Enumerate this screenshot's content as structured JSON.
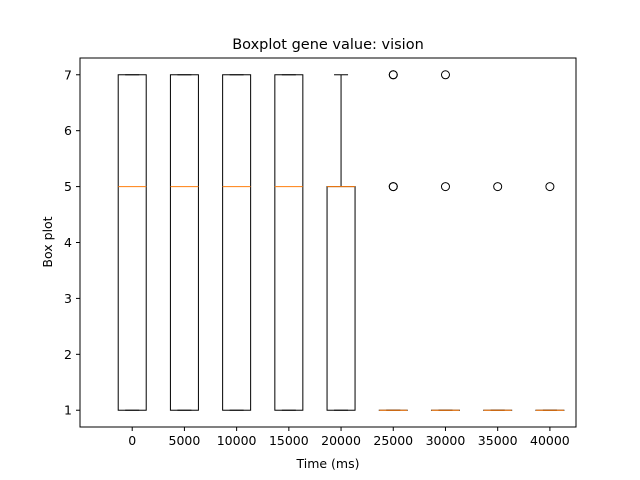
{
  "chart_data": {
    "type": "boxplot",
    "title": "Boxplot gene value: vision",
    "xlabel": "Time (ms)",
    "ylabel": "Box plot",
    "x_ticks": [
      "0",
      "5000",
      "10000",
      "15000",
      "20000",
      "25000",
      "30000",
      "35000",
      "40000"
    ],
    "y_ticks": [
      "1",
      "2",
      "3",
      "4",
      "5",
      "6",
      "7"
    ],
    "xlim": [
      -5000,
      42500
    ],
    "ylim": [
      0.7,
      7.3
    ],
    "grid": false,
    "box_color": "#000000",
    "median_color": "#ff7f0e",
    "boxes": [
      {
        "x": 0,
        "whislo": 1,
        "q1": 1,
        "med": 5,
        "q3": 7,
        "whishi": 7,
        "fliers": []
      },
      {
        "x": 5000,
        "whislo": 1,
        "q1": 1,
        "med": 5,
        "q3": 7,
        "whishi": 7,
        "fliers": []
      },
      {
        "x": 10000,
        "whislo": 1,
        "q1": 1,
        "med": 5,
        "q3": 7,
        "whishi": 7,
        "fliers": []
      },
      {
        "x": 15000,
        "whislo": 1,
        "q1": 1,
        "med": 5,
        "q3": 7,
        "whishi": 7,
        "fliers": []
      },
      {
        "x": 20000,
        "whislo": 1,
        "q1": 1,
        "med": 5,
        "q3": 5,
        "whishi": 7,
        "fliers": []
      },
      {
        "x": 25000,
        "whislo": 1,
        "q1": 1,
        "med": 1,
        "q3": 1,
        "whishi": 1,
        "fliers": [
          5,
          5,
          7,
          7
        ]
      },
      {
        "x": 30000,
        "whislo": 1,
        "q1": 1,
        "med": 1,
        "q3": 1,
        "whishi": 1,
        "fliers": [
          5,
          7
        ]
      },
      {
        "x": 35000,
        "whislo": 1,
        "q1": 1,
        "med": 1,
        "q3": 1,
        "whishi": 1,
        "fliers": [
          5
        ]
      },
      {
        "x": 40000,
        "whislo": 1,
        "q1": 1,
        "med": 1,
        "q3": 1,
        "whishi": 1,
        "fliers": [
          5
        ]
      }
    ]
  }
}
